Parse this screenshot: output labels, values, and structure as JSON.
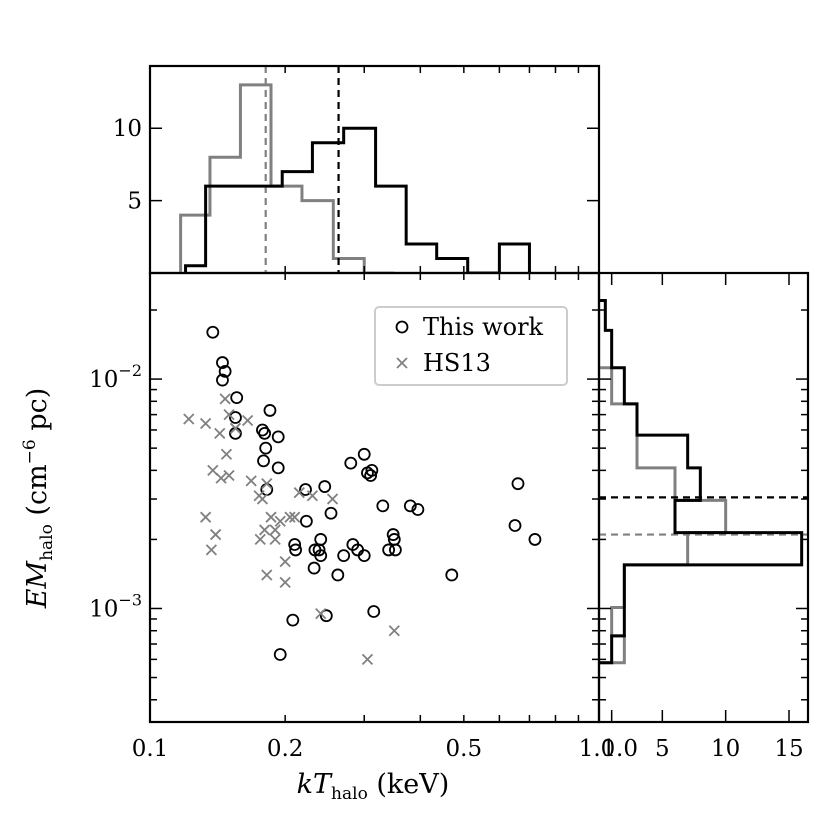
{
  "chart_data": {
    "type": "scatter",
    "scatter": {
      "xlabel": {
        "base": "kT",
        "sub": "halo",
        "unit": " (keV)"
      },
      "ylabel": {
        "base": "EM",
        "sub": "halo",
        "unit1": " (cm",
        "sup": "−6",
        "unit2": " pc)"
      },
      "xscale": "log",
      "yscale": "log",
      "xlim": [
        0.1,
        1.0
      ],
      "ylim": [
        0.00032,
        0.029
      ],
      "xticks": [
        {
          "v": 0.1,
          "label": "0.1"
        },
        {
          "v": 0.2,
          "label": "0.2"
        },
        {
          "v": 0.5,
          "label": "0.5"
        },
        {
          "v": 1.0,
          "label": "1.0"
        }
      ],
      "yticks": [
        {
          "v": 0.01,
          "base": "10",
          "exp": "−2"
        },
        {
          "v": 0.001,
          "base": "10",
          "exp": "−3"
        }
      ],
      "legend": {
        "placement": "top-right",
        "entries": [
          {
            "label": "This work",
            "marker": "circle",
            "color": "#000000"
          },
          {
            "label": "HS13",
            "marker": "x",
            "color": "#808080"
          }
        ]
      },
      "series": [
        {
          "name": "This work",
          "marker": "circle",
          "color": "#000000",
          "points": [
            [
              0.138,
              0.016
            ],
            [
              0.145,
              0.0118
            ],
            [
              0.147,
              0.0108
            ],
            [
              0.145,
              0.0099
            ],
            [
              0.156,
              0.0083
            ],
            [
              0.155,
              0.0068
            ],
            [
              0.155,
              0.0058
            ],
            [
              0.185,
              0.0073
            ],
            [
              0.178,
              0.006
            ],
            [
              0.18,
              0.0058
            ],
            [
              0.181,
              0.005
            ],
            [
              0.179,
              0.0044
            ],
            [
              0.193,
              0.0056
            ],
            [
              0.193,
              0.0041
            ],
            [
              0.182,
              0.0033
            ],
            [
              0.222,
              0.0033
            ],
            [
              0.245,
              0.0034
            ],
            [
              0.223,
              0.0024
            ],
            [
              0.253,
              0.0026
            ],
            [
              0.21,
              0.0019
            ],
            [
              0.211,
              0.0018
            ],
            [
              0.233,
              0.0018
            ],
            [
              0.238,
              0.0018
            ],
            [
              0.24,
              0.0017
            ],
            [
              0.24,
              0.002
            ],
            [
              0.232,
              0.0015
            ],
            [
              0.262,
              0.0014
            ],
            [
              0.27,
              0.0017
            ],
            [
              0.283,
              0.0019
            ],
            [
              0.29,
              0.0018
            ],
            [
              0.3,
              0.0017
            ],
            [
              0.28,
              0.0043
            ],
            [
              0.3,
              0.0047
            ],
            [
              0.305,
              0.0039
            ],
            [
              0.31,
              0.0038
            ],
            [
              0.312,
              0.004
            ],
            [
              0.33,
              0.0028
            ],
            [
              0.34,
              0.0018
            ],
            [
              0.348,
              0.0021
            ],
            [
              0.35,
              0.002
            ],
            [
              0.352,
              0.0018
            ],
            [
              0.38,
              0.0028
            ],
            [
              0.395,
              0.0027
            ],
            [
              0.47,
              0.0014
            ],
            [
              0.66,
              0.0035
            ],
            [
              0.65,
              0.0023
            ],
            [
              0.72,
              0.002
            ],
            [
              0.195,
              0.00063
            ],
            [
              0.208,
              0.00089
            ],
            [
              0.247,
              0.00093
            ],
            [
              0.315,
              0.00097
            ]
          ]
        },
        {
          "name": "HS13",
          "marker": "x",
          "color": "#808080",
          "points": [
            [
              0.122,
              0.0067
            ],
            [
              0.133,
              0.0064
            ],
            [
              0.143,
              0.0058
            ],
            [
              0.147,
              0.0082
            ],
            [
              0.15,
              0.007
            ],
            [
              0.155,
              0.0061
            ],
            [
              0.165,
              0.0066
            ],
            [
              0.148,
              0.0047
            ],
            [
              0.138,
              0.004
            ],
            [
              0.144,
              0.0037
            ],
            [
              0.15,
              0.0038
            ],
            [
              0.168,
              0.0036
            ],
            [
              0.175,
              0.0031
            ],
            [
              0.178,
              0.003
            ],
            [
              0.182,
              0.0035
            ],
            [
              0.186,
              0.0025
            ],
            [
              0.19,
              0.0022
            ],
            [
              0.195,
              0.0024
            ],
            [
              0.205,
              0.0025
            ],
            [
              0.21,
              0.0025
            ],
            [
              0.215,
              0.0032
            ],
            [
              0.23,
              0.0031
            ],
            [
              0.255,
              0.003
            ],
            [
              0.133,
              0.0025
            ],
            [
              0.14,
              0.0021
            ],
            [
              0.137,
              0.0018
            ],
            [
              0.18,
              0.0022
            ],
            [
              0.19,
              0.002
            ],
            [
              0.2,
              0.0016
            ],
            [
              0.176,
              0.002
            ],
            [
              0.182,
              0.0014
            ],
            [
              0.2,
              0.0013
            ],
            [
              0.24,
              0.00095
            ],
            [
              0.305,
              0.0006
            ],
            [
              0.35,
              0.0008
            ]
          ]
        }
      ]
    },
    "top_histogram": {
      "type": "histogram",
      "xscale": "log",
      "xlim": [
        0.1,
        1.0
      ],
      "ylim": [
        0,
        14.3
      ],
      "yticks": [
        {
          "v": 5,
          "label": "5"
        },
        {
          "v": 10,
          "label": "10"
        }
      ],
      "series": [
        {
          "name": "This work",
          "color": "#000000",
          "edges": [
            0.12,
            0.133,
            0.14,
            0.168,
            0.197,
            0.23,
            0.27,
            0.318,
            0.372,
            0.435,
            0.51,
            0.6,
            0.7
          ],
          "counts": [
            0.5,
            6,
            6,
            6,
            7,
            9,
            10,
            6,
            2,
            1,
            0,
            2
          ],
          "mean_line": 0.263
        },
        {
          "name": "HS13",
          "color": "#808080",
          "edges": [
            0.117,
            0.136,
            0.159,
            0.186,
            0.218,
            0.256,
            0.3,
            0.35
          ],
          "counts": [
            4,
            8,
            13,
            6,
            5,
            1,
            0
          ],
          "mean_line": 0.181
        }
      ]
    },
    "right_histogram": {
      "type": "histogram",
      "orientation": "horizontal",
      "xlim": [
        0,
        16.5
      ],
      "xticks": [
        {
          "v": 1,
          "label": "1.0"
        },
        {
          "v": 5,
          "label": "5"
        },
        {
          "v": 10,
          "label": "10"
        },
        {
          "v": 15,
          "label": "15"
        }
      ],
      "series": [
        {
          "name": "This work",
          "color": "#000000",
          "edges": [
            0.00058,
            0.00076,
            0.00101,
            0.00155,
            0.00214,
            0.00296,
            0.0041,
            0.0057,
            0.0078,
            0.0112,
            0.0163,
            0.022
          ],
          "counts": [
            1,
            2,
            2,
            16,
            6,
            8,
            7,
            3,
            2,
            1,
            0.5
          ],
          "mean_line": 0.00305
        },
        {
          "name": "HS13",
          "color": "#808080",
          "edges": [
            0.00058,
            0.00076,
            0.00101,
            0.00155,
            0.00214,
            0.00296,
            0.0041,
            0.0057,
            0.0078,
            0.0112
          ],
          "counts": [
            2,
            1,
            2,
            7,
            10,
            6,
            3,
            3,
            1
          ],
          "mean_line": 0.0021
        }
      ]
    }
  }
}
